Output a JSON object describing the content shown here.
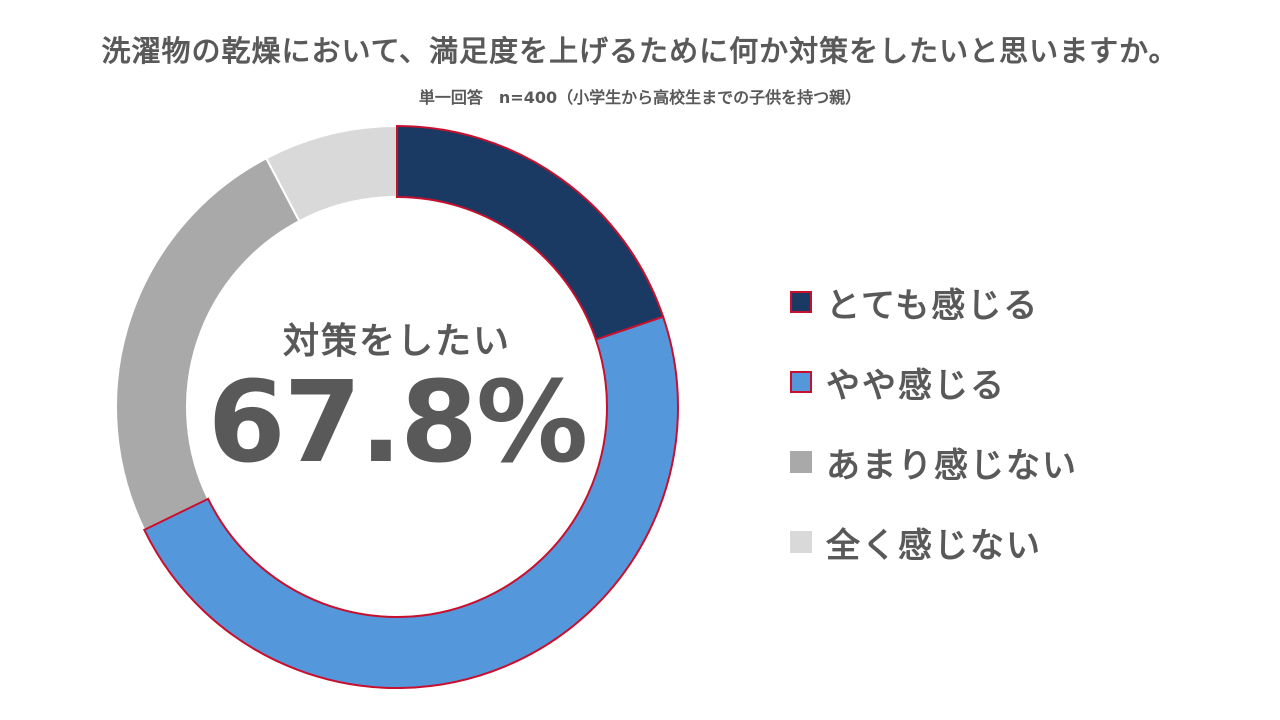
{
  "title": "洗濯物の乾燥において、満足度を上げるために何か対策をしたいと思いますか。",
  "subtitle": "単一回答　n=400（小学生から高校生までの子供を持つ親）",
  "center": {
    "label": "対策をしたい",
    "value": "67.8%"
  },
  "chart_data": {
    "type": "pie",
    "style": "donut",
    "title": "洗濯物の乾燥において、満足度を上げるために何か対策をしたいと思いますか。",
    "subtitle": "単一回答　n=400（小学生から高校生までの子供を持つ親）",
    "categories": [
      "とても感じる",
      "やや感じる",
      "あまり感じない",
      "全く感じない"
    ],
    "values": [
      19.8,
      48.0,
      24.5,
      7.7
    ],
    "unit": "%",
    "colors": [
      "#1a3a63",
      "#5597db",
      "#a9a9a9",
      "#d9d9d9"
    ],
    "highlight_border_color": "#c8102e",
    "highlighted": [
      true,
      true,
      false,
      false
    ],
    "legend_position": "right",
    "start_angle": "12 o'clock, clockwise"
  }
}
